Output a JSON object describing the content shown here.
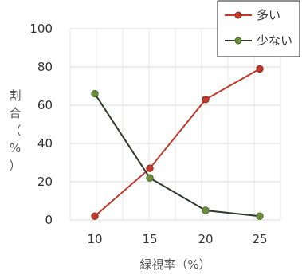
{
  "chart_data": {
    "type": "line",
    "x": [
      10,
      15,
      20,
      25
    ],
    "series": [
      {
        "name": "多い",
        "color": "#c0392b",
        "values": [
          2,
          27,
          63,
          79
        ]
      },
      {
        "name": "少ない",
        "color": "#6b8f3a",
        "values": [
          66,
          22,
          5,
          2
        ]
      }
    ],
    "xlabel": "緑視率（%）",
    "ylabel_chars": [
      "割",
      "合",
      "（",
      "%",
      "）"
    ],
    "ylim": [
      0,
      100
    ],
    "yticks": [
      0,
      20,
      40,
      60,
      80,
      100
    ],
    "grid": true,
    "legend_position": "top-right"
  }
}
